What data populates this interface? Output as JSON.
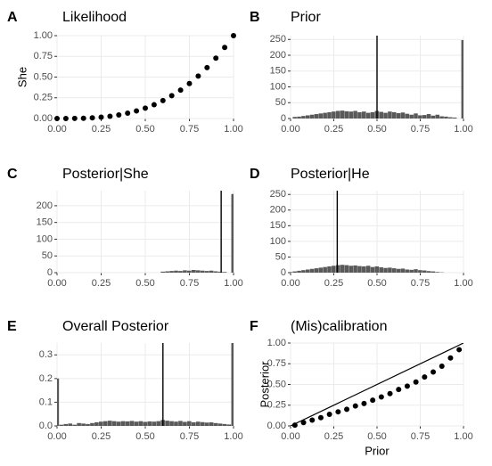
{
  "chart_data": [
    {
      "type": "scatter",
      "panel_label": "A",
      "title": "Likelihood",
      "ylabel": "She",
      "color": "#000000",
      "x": [
        0,
        0.05,
        0.1,
        0.15,
        0.2,
        0.25,
        0.3,
        0.35,
        0.4,
        0.45,
        0.5,
        0.55,
        0.6,
        0.65,
        0.7,
        0.75,
        0.8,
        0.85,
        0.9,
        0.95,
        1
      ],
      "values": [
        0,
        0.0001,
        0.001,
        0.003,
        0.008,
        0.016,
        0.027,
        0.043,
        0.064,
        0.091,
        0.125,
        0.166,
        0.216,
        0.275,
        0.343,
        0.422,
        0.512,
        0.614,
        0.729,
        0.857,
        1
      ],
      "xlim": [
        0,
        1
      ],
      "xticks": [
        {
          "value": 0,
          "label": "0.00"
        },
        {
          "value": 0.25,
          "label": "0.25"
        },
        {
          "value": 0.5,
          "label": "0.50"
        },
        {
          "value": 0.75,
          "label": "0.75"
        },
        {
          "value": 1,
          "label": "1.00"
        }
      ],
      "ylim": [
        0,
        1
      ],
      "yticks": [
        {
          "value": 0,
          "label": "0.00"
        },
        {
          "value": 0.25,
          "label": "0.25"
        },
        {
          "value": 0.5,
          "label": "0.50"
        },
        {
          "value": 0.75,
          "label": "0.75"
        },
        {
          "value": 1,
          "label": "1.00"
        }
      ],
      "grid": true
    },
    {
      "type": "histogram",
      "panel_label": "B",
      "title": "Prior",
      "color": "#595959",
      "vline": 0.5,
      "bins": [
        -0.0125,
        0.0125,
        0.0375,
        0.0625,
        0.0875,
        0.1125,
        0.1375,
        0.1625,
        0.1875,
        0.2125,
        0.2375,
        0.2625,
        0.2875,
        0.3125,
        0.3375,
        0.3625,
        0.3875,
        0.4125,
        0.4375,
        0.4625,
        0.4875,
        0.5125,
        0.5375,
        0.5625,
        0.5875,
        0.6125,
        0.6375,
        0.6625,
        0.6875,
        0.7125,
        0.7375,
        0.7625,
        0.7875,
        0.8125,
        0.8375,
        0.8625,
        0.8875,
        0.9125,
        0.9375,
        0.9625,
        0.9875,
        1.0125
      ],
      "values": [
        0,
        5,
        6,
        8,
        10,
        12,
        14,
        16,
        18,
        20,
        22,
        24,
        25,
        23,
        22,
        24,
        20,
        22,
        18,
        20,
        24,
        21,
        18,
        22,
        20,
        17,
        19,
        15,
        12,
        16,
        10,
        11,
        14,
        9,
        12,
        7,
        6,
        4,
        3,
        0,
        248
      ],
      "xlim": [
        0,
        1
      ],
      "xticks": [
        {
          "value": 0,
          "label": "0.00"
        },
        {
          "value": 0.25,
          "label": "0.25"
        },
        {
          "value": 0.5,
          "label": "0.50"
        },
        {
          "value": 0.75,
          "label": "0.75"
        },
        {
          "value": 1,
          "label": "1.00"
        }
      ],
      "ylim": [
        0,
        262
      ],
      "yticks": [
        0,
        50,
        100,
        150,
        200,
        250
      ],
      "grid": true
    },
    {
      "type": "histogram",
      "panel_label": "C",
      "title": "Posterior|She",
      "color": "#595959",
      "vline": 0.93,
      "bins": [
        -0.0125,
        0.0125,
        0.0375,
        0.0625,
        0.0875,
        0.1125,
        0.1375,
        0.1625,
        0.1875,
        0.2125,
        0.2375,
        0.2625,
        0.2875,
        0.3125,
        0.3375,
        0.3625,
        0.3875,
        0.4125,
        0.4375,
        0.4625,
        0.4875,
        0.5125,
        0.5375,
        0.5625,
        0.5875,
        0.6125,
        0.6375,
        0.6625,
        0.6875,
        0.7125,
        0.7375,
        0.7625,
        0.7875,
        0.8125,
        0.8375,
        0.8625,
        0.8875,
        0.9125,
        0.9375,
        0.9625,
        0.9875,
        1.0125
      ],
      "values": [
        0,
        0,
        0,
        0,
        0,
        0,
        0,
        0,
        0,
        0,
        0,
        0,
        0,
        0,
        0,
        0,
        0,
        0,
        0,
        0,
        0,
        0,
        0,
        0,
        3,
        4,
        5,
        6,
        5,
        7,
        6,
        8,
        7,
        6,
        5,
        6,
        4,
        3,
        2,
        0,
        235
      ],
      "xlim": [
        0,
        1
      ],
      "xticks": [
        {
          "value": 0,
          "label": "0.00"
        },
        {
          "value": 0.25,
          "label": "0.25"
        },
        {
          "value": 0.5,
          "label": "0.50"
        },
        {
          "value": 0.75,
          "label": "0.75"
        },
        {
          "value": 1,
          "label": "1.00"
        }
      ],
      "ylim": [
        0,
        245
      ],
      "yticks": [
        0,
        50,
        100,
        150,
        200
      ],
      "grid": true
    },
    {
      "type": "histogram",
      "panel_label": "D",
      "title": "Posterior|He",
      "color": "#595959",
      "vline": 0.27,
      "bins": [
        -0.0125,
        0.0125,
        0.0375,
        0.0625,
        0.0875,
        0.1125,
        0.1375,
        0.1625,
        0.1875,
        0.2125,
        0.2375,
        0.2625,
        0.2875,
        0.3125,
        0.3375,
        0.3625,
        0.3875,
        0.4125,
        0.4375,
        0.4625,
        0.4875,
        0.5125,
        0.5375,
        0.5625,
        0.5875,
        0.6125,
        0.6375,
        0.6625,
        0.6875,
        0.7125,
        0.7375,
        0.7625,
        0.7875,
        0.8125,
        0.8375,
        0.8625,
        0.8875,
        0.9125,
        0.9375,
        0.9625,
        0.9875,
        1.0125
      ],
      "values": [
        2,
        4,
        6,
        8,
        10,
        12,
        14,
        16,
        18,
        20,
        22,
        24,
        25,
        24,
        22,
        23,
        21,
        20,
        22,
        18,
        20,
        17,
        15,
        16,
        14,
        12,
        13,
        10,
        9,
        11,
        8,
        7,
        5,
        4,
        2,
        1,
        0,
        0,
        0,
        0,
        0
      ],
      "xlim": [
        0,
        1
      ],
      "xticks": [
        {
          "value": 0,
          "label": "0.00"
        },
        {
          "value": 0.25,
          "label": "0.25"
        },
        {
          "value": 0.5,
          "label": "0.50"
        },
        {
          "value": 0.75,
          "label": "0.75"
        },
        {
          "value": 1,
          "label": "1.00"
        }
      ],
      "ylim": [
        0,
        262
      ],
      "yticks": [
        0,
        50,
        100,
        150,
        200,
        250
      ],
      "grid": true
    },
    {
      "type": "histogram",
      "panel_label": "E",
      "title": "Overall Posterior",
      "color": "#595959",
      "vline": 0.6,
      "bins": [
        -0.0125,
        0.0125,
        0.0375,
        0.0625,
        0.0875,
        0.1125,
        0.1375,
        0.1625,
        0.1875,
        0.2125,
        0.2375,
        0.2625,
        0.2875,
        0.3125,
        0.3375,
        0.3625,
        0.3875,
        0.4125,
        0.4375,
        0.4625,
        0.4875,
        0.5125,
        0.5375,
        0.5625,
        0.5875,
        0.6125,
        0.6375,
        0.6625,
        0.6875,
        0.7125,
        0.7375,
        0.7625,
        0.7875,
        0.8125,
        0.8375,
        0.8625,
        0.8875,
        0.9125,
        0.9375,
        0.9625,
        0.9875,
        1.0125
      ],
      "values": [
        0.2,
        0.005,
        0.008,
        0.01,
        0.005,
        0.012,
        0.01,
        0.008,
        0.012,
        0.015,
        0.018,
        0.02,
        0.022,
        0.02,
        0.018,
        0.02,
        0.019,
        0.021,
        0.018,
        0.02,
        0.017,
        0.019,
        0.018,
        0.02,
        0.025,
        0.022,
        0.02,
        0.018,
        0.021,
        0.017,
        0.02,
        0.015,
        0.018,
        0.016,
        0.014,
        0.015,
        0.012,
        0.01,
        0.008,
        0.006,
        0.36
      ],
      "xlim": [
        0,
        1
      ],
      "xticks": [
        {
          "value": 0,
          "label": "0.00"
        },
        {
          "value": 0.25,
          "label": "0.25"
        },
        {
          "value": 0.5,
          "label": "0.50"
        },
        {
          "value": 0.75,
          "label": "0.75"
        },
        {
          "value": 1,
          "label": "1.00"
        }
      ],
      "ylim": [
        0,
        0.35
      ],
      "yticks": [
        {
          "value": 0,
          "label": "0.0"
        },
        {
          "value": 0.1,
          "label": "0.1"
        },
        {
          "value": 0.2,
          "label": "0.2"
        },
        {
          "value": 0.3,
          "label": "0.3"
        }
      ],
      "grid": true
    },
    {
      "type": "scatter",
      "panel_label": "F",
      "title": "(Mis)calibration",
      "xlabel": "Prior",
      "ylabel": "Posterior",
      "color": "#000000",
      "diagonal": true,
      "x": [
        0.025,
        0.075,
        0.125,
        0.175,
        0.225,
        0.275,
        0.325,
        0.375,
        0.425,
        0.475,
        0.525,
        0.575,
        0.625,
        0.675,
        0.725,
        0.775,
        0.825,
        0.875,
        0.925,
        0.975
      ],
      "values": [
        0.01,
        0.04,
        0.07,
        0.1,
        0.14,
        0.17,
        0.2,
        0.24,
        0.27,
        0.31,
        0.35,
        0.39,
        0.44,
        0.48,
        0.53,
        0.59,
        0.65,
        0.72,
        0.82,
        0.92
      ],
      "xlim": [
        0,
        1
      ],
      "xticks": [
        {
          "value": 0,
          "label": "0.00"
        },
        {
          "value": 0.25,
          "label": "0.25"
        },
        {
          "value": 0.5,
          "label": "0.50"
        },
        {
          "value": 0.75,
          "label": "0.75"
        },
        {
          "value": 1,
          "label": "1.00"
        }
      ],
      "ylim": [
        0,
        1
      ],
      "yticks": [
        {
          "value": 0,
          "label": "0.00"
        },
        {
          "value": 0.25,
          "label": "0.25"
        },
        {
          "value": 0.5,
          "label": "0.50"
        },
        {
          "value": 0.75,
          "label": "0.75"
        },
        {
          "value": 1,
          "label": "1.00"
        }
      ],
      "grid": true
    }
  ]
}
